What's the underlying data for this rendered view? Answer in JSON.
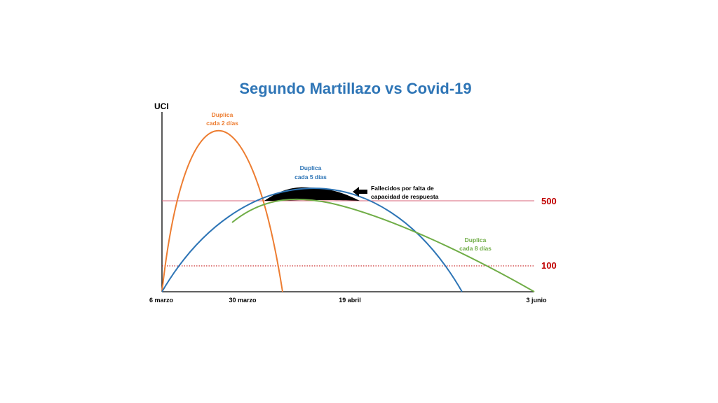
{
  "chart_data": {
    "type": "line",
    "title": "Segundo Martillazo vs Covid-19",
    "ylabel": "UCI",
    "x_ticks": [
      "6 marzo",
      "30 marzo",
      "19 abril",
      "3 junio"
    ],
    "thresholds": [
      {
        "label": "500",
        "value": 500,
        "style": "solid",
        "color": "#d9667a"
      },
      {
        "label": "100",
        "value": 100,
        "style": "dotted",
        "color": "#c00000"
      }
    ],
    "series": [
      {
        "name": "Duplica cada 2 días",
        "color": "#ed7d31",
        "x": [
          0,
          12,
          24,
          36,
          48
        ],
        "y": [
          0,
          490,
          890,
          490,
          0
        ]
      },
      {
        "name": "Duplica cada 5 días",
        "color": "#2e75b6",
        "x": [
          0,
          56,
          112,
          168,
          224
        ],
        "y": [
          0,
          390,
          560,
          390,
          0
        ]
      },
      {
        "name": "Duplica cada 8 días",
        "color": "#70ad47",
        "x": [
          18,
          40,
          58,
          90,
          150,
          224
        ],
        "y": [
          310,
          450,
          500,
          470,
          310,
          0
        ]
      }
    ],
    "annotations": {
      "orange": [
        "Duplica",
        "cada 2 días"
      ],
      "blue": [
        "Duplica",
        "cada 5 días"
      ],
      "green": [
        "Duplica",
        "cada 8 días"
      ],
      "arrow": [
        "Fallecidos por falta de",
        "capacidad de respuesta"
      ]
    },
    "colors": {
      "axis": "#000000",
      "shaded": "#000000",
      "title": "#2e75b6",
      "threshold_text": "#c00000"
    }
  }
}
